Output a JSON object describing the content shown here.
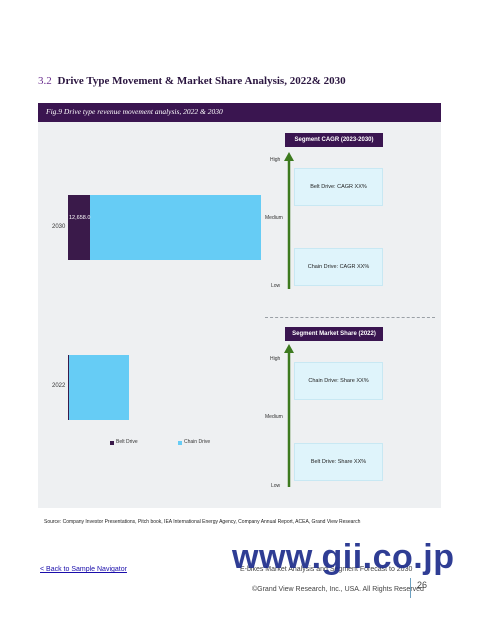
{
  "section": {
    "number": "3.2",
    "title": "Drive Type Movement & Market Share Analysis, 2022& 2030"
  },
  "figure": {
    "caption": "Fig.9   Drive type revenue movement analysis, 2022 & 2030"
  },
  "chart_data": {
    "type": "bar",
    "orientation": "horizontal",
    "stacked": true,
    "categories": [
      "2030",
      "2022"
    ],
    "series": [
      {
        "name": "Belt Drive",
        "values": [
          12658.0,
          700
        ]
      },
      {
        "name": "Chain Drive",
        "values": [
          100000,
          35000
        ]
      }
    ],
    "data_labels": {
      "belt_2030": "12,658.0"
    },
    "legend_position": "bottom",
    "colors": {
      "belt": "#3a1a4a",
      "chain": "#66ccf5"
    }
  },
  "cagr": {
    "header": "Segment CAGR (2023-2030)",
    "levels": [
      "High",
      "Medium",
      "Low"
    ],
    "items": [
      "Belt Drive: CAGR XX%",
      "Chain Drive: CAGR XX%"
    ]
  },
  "share": {
    "header": "Segment Market Share (2022)",
    "levels": [
      "High",
      "Medium",
      "Low"
    ],
    "items": [
      "Chain Drive: Share XX%",
      "Belt Drive: Share XX%"
    ]
  },
  "source": "Source:  Company Investor Presentations, Pitch book, IEA International Energy Agency, Company Annual Report, ACEA, Grand View Research",
  "nav_link": "< Back to Sample Navigator",
  "footer": {
    "report": "E-bikes Market Analysis and Segment Forecast to 2030",
    "copyright": "©Grand View Research, Inc., USA. All Rights Reserved",
    "page": "26"
  },
  "watermark": "www.gii.co.jp"
}
